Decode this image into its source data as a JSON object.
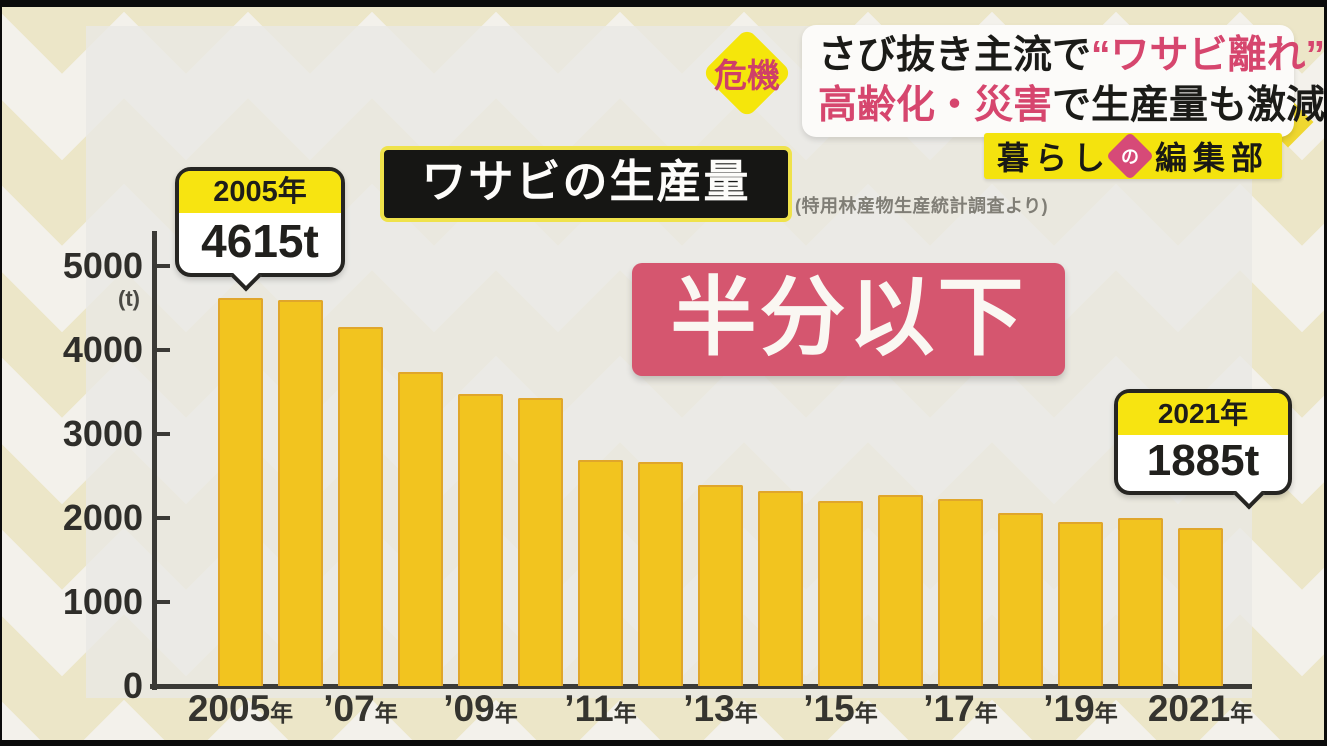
{
  "header": {
    "crisis_badge": "危機",
    "headline": {
      "line1": [
        {
          "text": "さび抜き主流で"
        },
        {
          "text": "“ワサビ離れ”"
        }
      ],
      "line2": [
        {
          "text": "高齢化・災害"
        },
        {
          "text": "で生産量も激減"
        }
      ]
    },
    "program_logo": {
      "left": "暮らし",
      "mid": "の",
      "right": "編集部"
    }
  },
  "chart_header": {
    "title": "ワサビの生産量",
    "source_note": "(特用林産物生産統計調査より)"
  },
  "callouts": {
    "first": {
      "year": "2005年",
      "value": "4615t"
    },
    "last": {
      "year": "2021年",
      "value": "1885t"
    }
  },
  "highlight_banner": {
    "text": "半分以下"
  },
  "chart_data": {
    "type": "bar",
    "title": "ワサビの生産量",
    "source": "特用林産物生産統計調査",
    "unit": "t",
    "unit_label": "(t)",
    "x": [
      2005,
      2006,
      2007,
      2008,
      2009,
      2010,
      2011,
      2012,
      2013,
      2014,
      2015,
      2016,
      2017,
      2018,
      2019,
      2020,
      2021
    ],
    "values": [
      4615,
      4590,
      4270,
      3740,
      3470,
      3420,
      2690,
      2660,
      2390,
      2320,
      2200,
      2270,
      2220,
      2060,
      1950,
      2000,
      1885
    ],
    "labeled_points": {
      "2005": 4615,
      "2021": 1885
    },
    "x_tick_labels": [
      {
        "num": "2005",
        "unit": "年"
      },
      {
        "num": "’07",
        "unit": "年"
      },
      {
        "num": "’09",
        "unit": "年"
      },
      {
        "num": "’11",
        "unit": "年"
      },
      {
        "num": "’13",
        "unit": "年"
      },
      {
        "num": "’15",
        "unit": "年"
      },
      {
        "num": "’17",
        "unit": "年"
      },
      {
        "num": "’19",
        "unit": "年"
      },
      {
        "num": "2021",
        "unit": "年"
      }
    ],
    "y_ticks": [
      0,
      1000,
      2000,
      3000,
      4000,
      5000
    ],
    "ylim": [
      0,
      5400
    ],
    "grid": false,
    "legend": false
  },
  "colors": {
    "bar_fill": "#f2c41f",
    "bar_border": "#e0a62b",
    "axis": "#3b3a36",
    "accent_pink": "#d5566f",
    "headline_pink": "#d6466e",
    "accent_yellow": "#f5e60b",
    "callout_header_yellow": "#f7e411",
    "logo_yellow": "#f4e30e",
    "background_cream": "#f3f1eb",
    "pattern_diamond": "#ece6c8",
    "title_box_black": "#161614"
  }
}
